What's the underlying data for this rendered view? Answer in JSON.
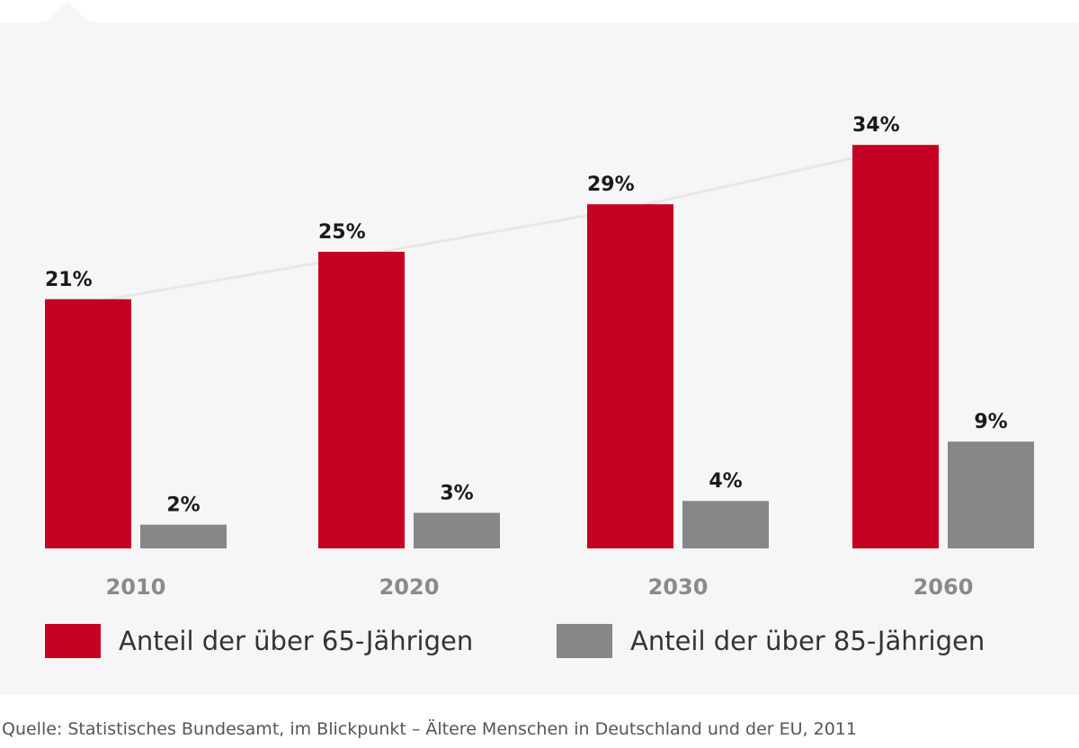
{
  "colors": {
    "series_65": "#c40023",
    "series_85": "#878787",
    "panel_background": "#f6f6f6",
    "trend_line": "#e8e8e8",
    "year_label": "#8a8a8a"
  },
  "chart_data": {
    "type": "bar",
    "categories": [
      "2010",
      "2020",
      "2030",
      "2060"
    ],
    "series": [
      {
        "name": "Anteil der über 65-Jährigen",
        "values": [
          21,
          25,
          29,
          34
        ],
        "labels": [
          "21%",
          "25%",
          "29%",
          "34%"
        ]
      },
      {
        "name": "Anteil der über 85-Jährigen",
        "values": [
          2,
          3,
          4,
          9
        ],
        "labels": [
          "2%",
          "3%",
          "4%",
          "9%"
        ]
      }
    ],
    "ylim": [
      0,
      40
    ],
    "unit": "%",
    "grid": false,
    "legend_position": "bottom",
    "decorative_trend_line": true
  },
  "legend": {
    "item_65": "Anteil der über 65-Jährigen",
    "item_85": "Anteil der über 85-Jährigen"
  },
  "source": "Quelle: Statistisches Bundesamt, im Blickpunkt – Ältere Menschen in Deutschland und der EU, 2011"
}
